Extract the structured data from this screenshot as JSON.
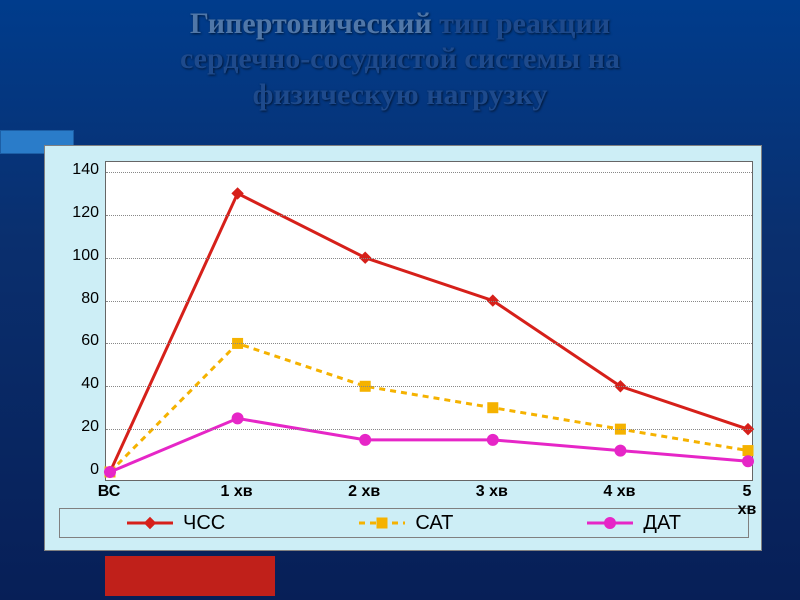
{
  "title": {
    "line1": "Гипертонический",
    "rest1": " тип реакции",
    "line2": "сердечно-сосудистой системы на",
    "line3": "физическую нагрузку",
    "color_dim": "#5077a8",
    "color_bold": "#1e4a8c",
    "fontsize": 30
  },
  "slide_bg_top": "#003c8c",
  "slide_bg_bottom": "#071f57",
  "deco_bar_color": "#2a7cc9",
  "red_block_color": "#c0201a",
  "chart": {
    "type": "line",
    "panel_bg": "#cdeef6",
    "plot_bg": "#ffffff",
    "border_color": "#808080",
    "grid_color": "#888888",
    "y_axis": {
      "label": "%",
      "min": 0,
      "max": 140,
      "tick_step": 20,
      "ticks": [
        0,
        20,
        40,
        60,
        80,
        100,
        120,
        140
      ],
      "fontsize": 16
    },
    "x_axis": {
      "categories": [
        "ВС",
        "1 хв",
        "2 хв",
        "3 хв",
        "4 хв",
        "5 хв"
      ],
      "fontsize": 16,
      "fontweight": "bold"
    },
    "series": [
      {
        "name": "ЧСС",
        "values": [
          0,
          130,
          100,
          80,
          40,
          20
        ],
        "color": "#d6201a",
        "line_width": 3,
        "dash": "none",
        "marker": "diamond",
        "marker_size": 11
      },
      {
        "name": "САТ",
        "values": [
          0,
          60,
          40,
          30,
          20,
          10
        ],
        "color": "#f5b200",
        "line_width": 3,
        "dash": "6,5",
        "marker": "square",
        "marker_size": 10
      },
      {
        "name": "ДАТ",
        "values": [
          0,
          25,
          15,
          15,
          10,
          5
        ],
        "color": "#e626c7",
        "line_width": 3,
        "dash": "none",
        "marker": "circle",
        "marker_size": 11
      }
    ],
    "legend": {
      "position": "bottom",
      "fontsize": 20,
      "bg": "#cdeef6",
      "border": "#808080"
    }
  }
}
